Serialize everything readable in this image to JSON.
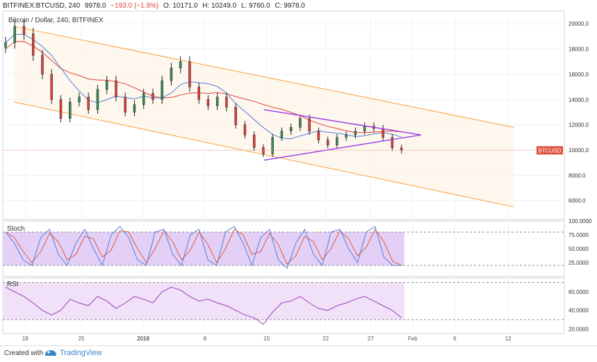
{
  "header": {
    "symbol_line": "BITFINEX:BTCUSD, 240",
    "last": "9978.0",
    "change": "−193.0 (−1.9%)",
    "open": "O: 10171.0",
    "high": "H: 10249.0",
    "low": "L: 9760.0",
    "close": "C: 9978.0"
  },
  "main_pane": {
    "title": "Bitcoin / Dollar, 240, BITFINEX",
    "price_tag": "BTCUSD",
    "price_tag_color": "#e0523f"
  },
  "stoch_pane": {
    "title": "Stoch"
  },
  "rsi_pane": {
    "title": "RSI"
  },
  "footer": {
    "made_with": "Created with",
    "brand": "TradingView"
  },
  "colors": {
    "up": "#3f8b56",
    "down": "#e0413a",
    "candle_body": "#1a1a1a",
    "channel": "#f7a23c",
    "triangle": "#9b40e6",
    "ma_fast": "#4f7fd8",
    "ma_slow": "#e0413a",
    "stoch_fill": "#e4cff7",
    "stoch_k": "#4f7fd8",
    "stoch_d": "#e05a3a",
    "rsi_line": "#9b40b8",
    "rsi_fill": "#f0e0f8"
  },
  "chart_data": {
    "type": "candlestick",
    "title": "Bitcoin / Dollar, 240, BITFINEX",
    "x_tick_labels": [
      "18",
      "25",
      "2018",
      "8",
      "15",
      "22",
      "27",
      "Feb",
      "6",
      "12"
    ],
    "y_tick_labels": [
      "20000.0",
      "18000.0",
      "16000.0",
      "14000.0",
      "12000.0",
      "10000.0",
      "8000.0",
      "6000.0"
    ],
    "ylim": [
      4500,
      21000
    ],
    "last_price": 9978.0,
    "candles_approx_closes": [
      18500,
      19800,
      19200,
      17500,
      16000,
      14000,
      12500,
      13800,
      14200,
      13200,
      14800,
      15500,
      14200,
      13000,
      13600,
      14500,
      14000,
      15500,
      16500,
      17000,
      15000,
      14000,
      13500,
      14200,
      13400,
      12000,
      11200,
      10200,
      9700,
      11000,
      11500,
      11800,
      12500,
      11500,
      10800,
      10400,
      11000,
      11200,
      11500,
      11900,
      11700,
      11000,
      10171,
      9978
    ],
    "channel": {
      "upper": [
        [
          0,
          19800
        ],
        [
          1,
          11800
        ]
      ],
      "lower": [
        [
          0,
          13800
        ],
        [
          1,
          5500
        ]
      ]
    },
    "triangle": {
      "upper": [
        [
          0,
          13200
        ],
        [
          1,
          11200
        ]
      ],
      "lower": [
        [
          0,
          9200
        ],
        [
          1,
          11200
        ]
      ]
    },
    "stoch": {
      "title": "Stoch",
      "y_tick_labels": [
        "100.0000",
        "75.0000",
        "50.0000",
        "25.0000"
      ],
      "ylim": [
        0,
        100
      ],
      "bands": [
        20,
        80
      ],
      "k": [
        80,
        60,
        30,
        20,
        70,
        85,
        40,
        20,
        60,
        85,
        50,
        20,
        75,
        90,
        70,
        30,
        20,
        80,
        85,
        40,
        20,
        75,
        85,
        30,
        20,
        80,
        90,
        60,
        20,
        70,
        85,
        30,
        15,
        60,
        85,
        40,
        20,
        80,
        85,
        50,
        25,
        80,
        90,
        35,
        20,
        20
      ]
    },
    "rsi": {
      "title": "RSI",
      "y_tick_labels": [
        "60.0000",
        "40.0000",
        "20.0000"
      ],
      "ylim": [
        15,
        75
      ],
      "bands": [
        30,
        70
      ],
      "values": [
        65,
        60,
        55,
        48,
        40,
        35,
        40,
        52,
        48,
        45,
        55,
        50,
        42,
        48,
        55,
        52,
        48,
        60,
        65,
        62,
        55,
        50,
        52,
        48,
        45,
        40,
        35,
        32,
        25,
        38,
        48,
        50,
        55,
        48,
        42,
        40,
        45,
        48,
        52,
        55,
        50,
        45,
        40,
        32
      ]
    }
  }
}
